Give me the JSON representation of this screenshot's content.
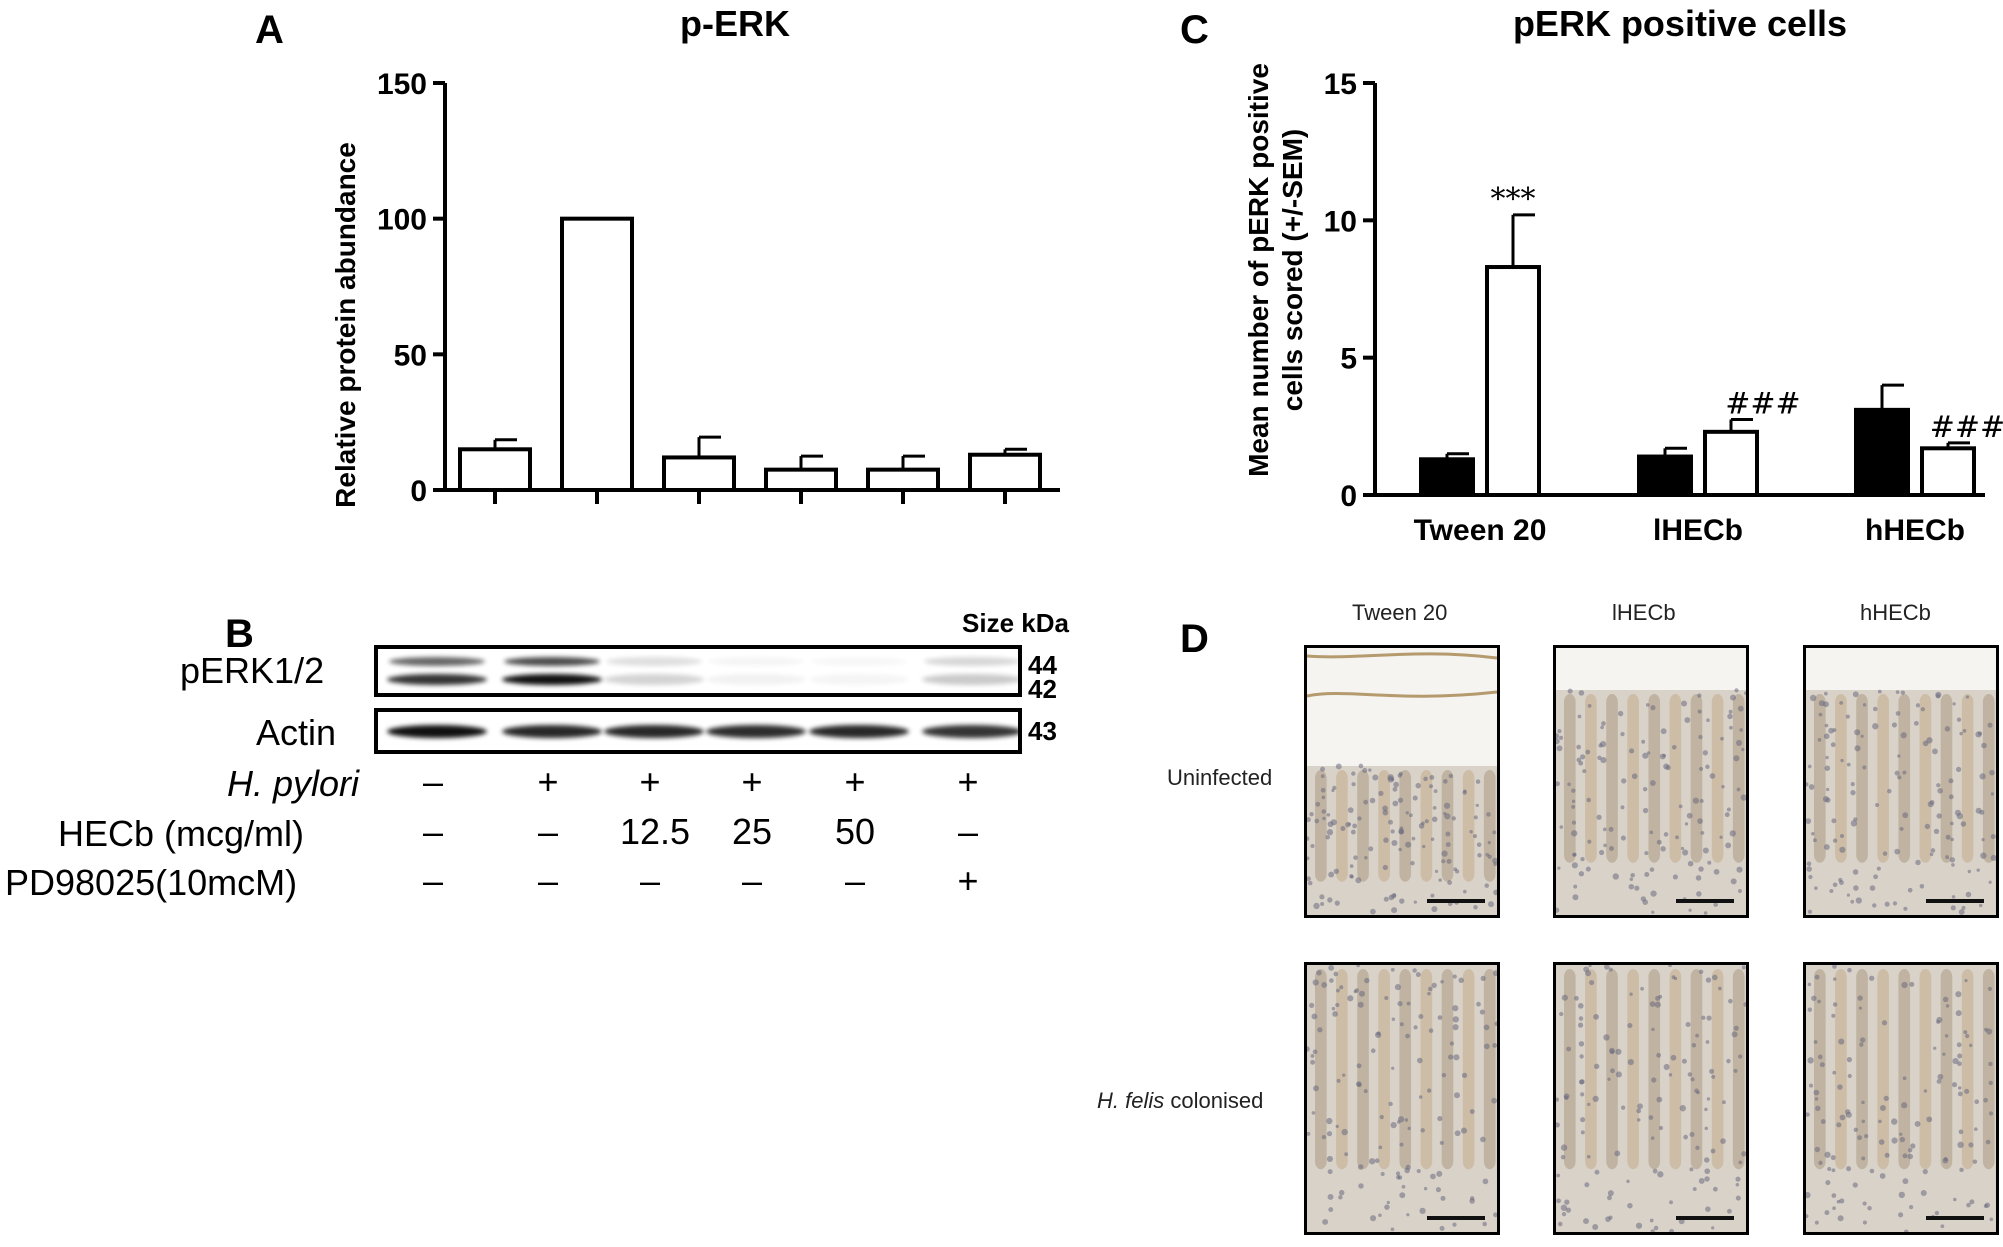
{
  "panel_letters": {
    "a": "A",
    "b": "B",
    "c": "C",
    "d": "D"
  },
  "chart_data": [
    {
      "type": "bar",
      "panel": "A",
      "title": "p-ERK",
      "xlabel": "",
      "ylabel": "Relative protein abundance",
      "ylim": [
        0,
        150
      ],
      "yticks": [
        0,
        50,
        100,
        150
      ],
      "categories": [
        "",
        "",
        "",
        "",
        "",
        ""
      ],
      "values": [
        15,
        100,
        12,
        7.5,
        7.5,
        13
      ],
      "errors": [
        3.5,
        0,
        7.5,
        5,
        5,
        2
      ],
      "bar_color": "#ffffff",
      "edge_color": "#000000"
    },
    {
      "type": "bar",
      "panel": "C",
      "title": "pERK positive cells",
      "xlabel": "",
      "ylabel": "Mean number of pERK positive cells scored (+/-SEM)",
      "ylim": [
        0,
        15
      ],
      "yticks": [
        0,
        5,
        10,
        15
      ],
      "categories": [
        "Tween 20",
        "lHECb",
        "hHECb"
      ],
      "series": [
        {
          "values": [
            1.3,
            1.4,
            3.1
          ],
          "errors": [
            0.2,
            0.3,
            0.9
          ],
          "color": "#000000"
        },
        {
          "values": [
            8.3,
            2.3,
            1.7
          ],
          "errors": [
            1.9,
            0.45,
            0.2
          ],
          "color": "#ffffff"
        }
      ],
      "annotations": [
        {
          "category": "Tween 20",
          "series": 1,
          "text": "***"
        },
        {
          "category": "lHECb",
          "series": 1,
          "text": "###"
        },
        {
          "category": "hHECb",
          "series": 1,
          "text": "####"
        }
      ]
    }
  ],
  "blot": {
    "size_header": "Size kDa",
    "rows": [
      {
        "label": "pERK1/2",
        "sizes": [
          "44",
          "42"
        ]
      },
      {
        "label": "Actin",
        "sizes": [
          "43"
        ]
      }
    ],
    "pperk_intensity": [
      0.85,
      1.0,
      0.18,
      0.05,
      0.04,
      0.22
    ],
    "actin_intensity": [
      1.0,
      0.9,
      0.9,
      0.88,
      0.9,
      0.85
    ]
  },
  "conditions": {
    "hpylori_label_italic": "H. pylori",
    "hpylori": [
      "–",
      "+",
      "+",
      "+",
      "+",
      "+"
    ],
    "hecb_label": "HECb (mcg/ml)",
    "hecb": [
      "–",
      "–",
      "12.5",
      "25",
      "50",
      "–"
    ],
    "pd_label": "PD98025(10mcM)",
    "pd": [
      "–",
      "–",
      "–",
      "–",
      "–",
      "+"
    ]
  },
  "micrographs": {
    "columns": [
      "Tween 20",
      "lHECb",
      "hHECb"
    ],
    "row1_label": "Uninfected",
    "row2_label_italic": "H. felis",
    "row2_label_rest": " colonised"
  }
}
